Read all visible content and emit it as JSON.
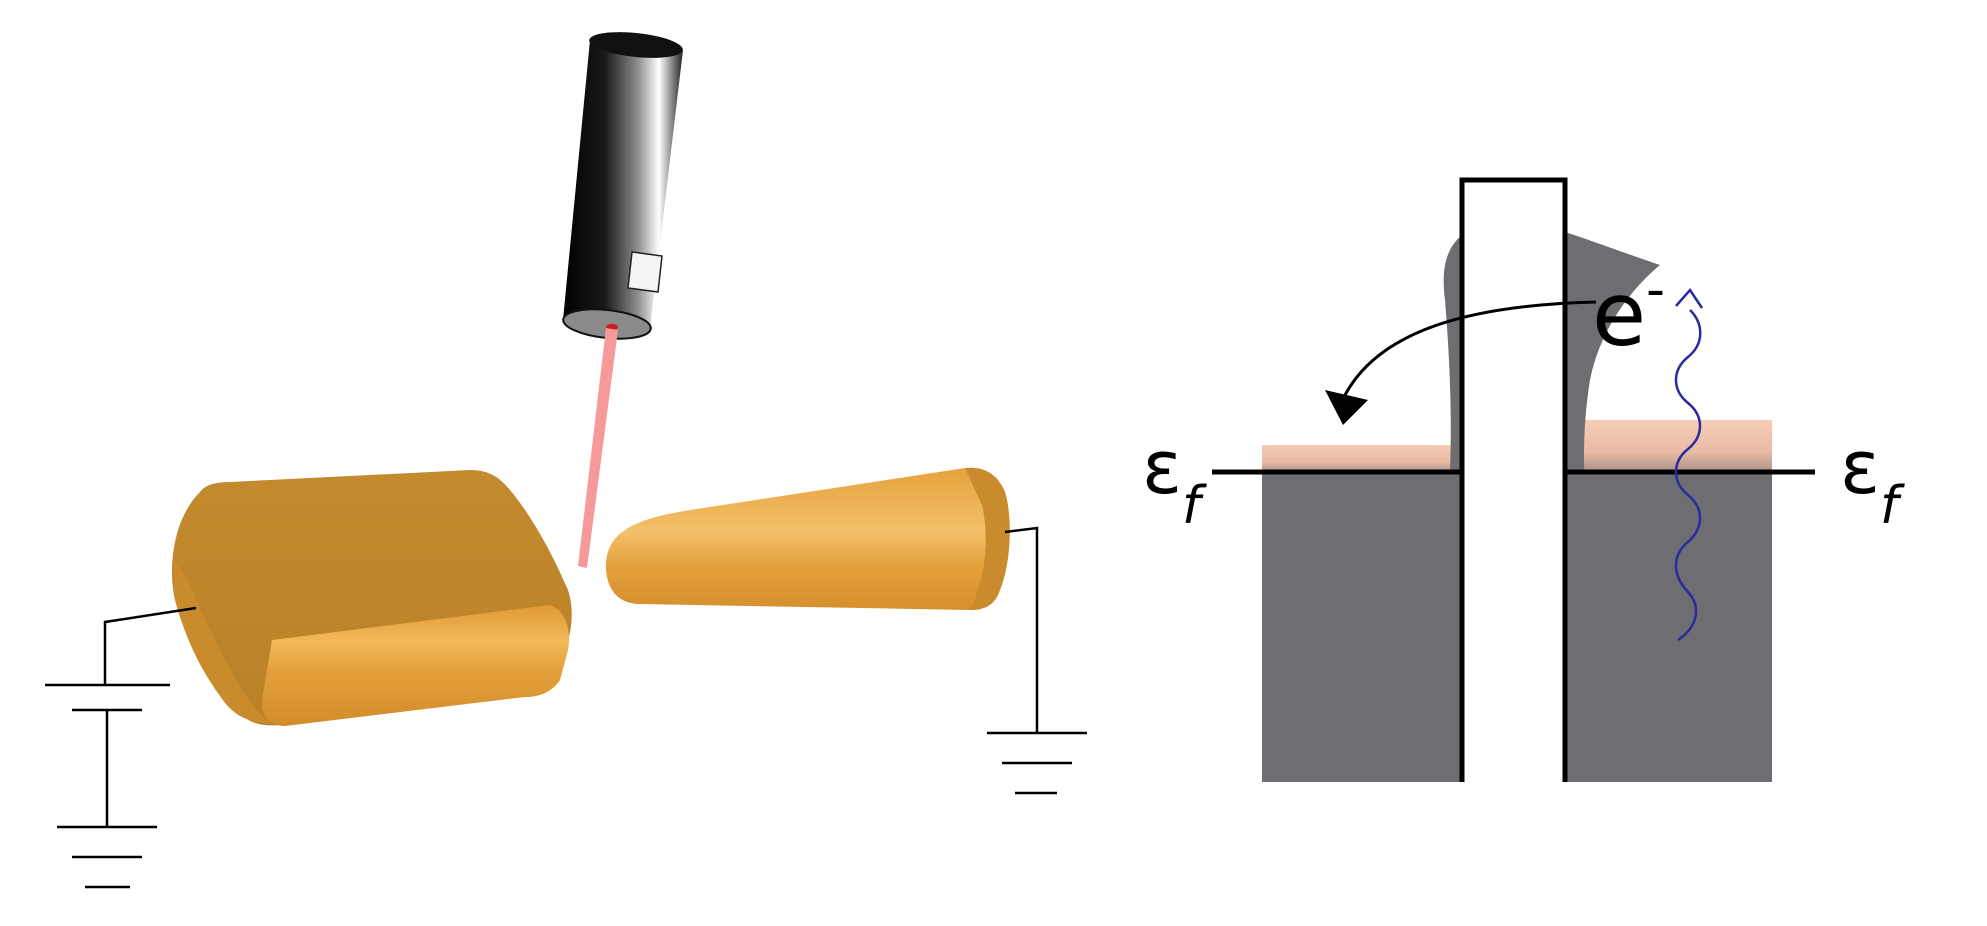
{
  "figure": {
    "left_panel": {
      "description_free": true,
      "laser_color": "#f28a8a",
      "electrode_color": "#e3a03a",
      "probe_color": "#111111"
    },
    "right_panel": {
      "fermi_label_left": {
        "symbol": "ε",
        "subscript": "f"
      },
      "fermi_label_right": {
        "symbol": "ε",
        "subscript": "f"
      },
      "electron_label": {
        "symbol": "e",
        "superscript": "-"
      },
      "colors": {
        "metal": "#6e6e72",
        "density_of_states": "#6e6e72",
        "fermi_band": "#f3c7b2",
        "photon": "#2b2b9e",
        "barrier": "#000000"
      }
    }
  }
}
